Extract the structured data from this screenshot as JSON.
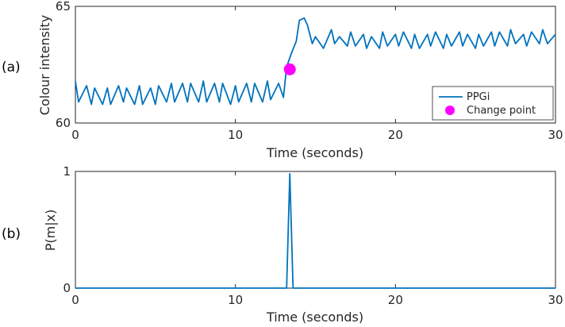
{
  "chart_data": [
    {
      "panel_label": "(a)",
      "type": "line",
      "xlabel": "Time (seconds)",
      "ylabel": "Colour intensity",
      "xlim": [
        0,
        30
      ],
      "ylim": [
        60,
        65
      ],
      "xticks": [
        0,
        10,
        20,
        30
      ],
      "yticks": [
        60,
        65
      ],
      "grid": false,
      "legend_position": "bottom-right",
      "series": [
        {
          "name": "PPGi",
          "color": "#0072BD",
          "x": [
            0,
            0.2,
            0.7,
            1.0,
            1.2,
            1.7,
            2.0,
            2.2,
            2.7,
            3.0,
            3.2,
            3.7,
            4.0,
            4.2,
            4.7,
            5.0,
            5.2,
            5.7,
            6.0,
            6.2,
            6.7,
            7.0,
            7.2,
            7.7,
            8.0,
            8.2,
            8.7,
            9.0,
            9.2,
            9.7,
            10.0,
            10.2,
            10.7,
            11.0,
            11.2,
            11.7,
            12.0,
            12.2,
            12.7,
            13.0,
            13.2,
            13.5,
            13.8,
            14.0,
            14.3,
            14.5,
            14.8,
            15.0,
            15.5,
            16.0,
            16.2,
            16.5,
            17.0,
            17.2,
            17.5,
            18.0,
            18.2,
            18.5,
            19.0,
            19.2,
            19.5,
            20.0,
            20.2,
            20.5,
            21.0,
            21.2,
            21.5,
            22.0,
            22.2,
            22.5,
            23.0,
            23.2,
            23.5,
            24.0,
            24.2,
            24.5,
            25.0,
            25.2,
            25.5,
            26.0,
            26.2,
            26.5,
            27.0,
            27.2,
            27.5,
            28.0,
            28.2,
            28.5,
            29.0,
            29.2,
            29.5,
            30.0
          ],
          "y": [
            61.8,
            60.9,
            61.6,
            60.8,
            61.5,
            60.8,
            61.5,
            60.8,
            61.6,
            60.9,
            61.5,
            60.8,
            61.6,
            60.8,
            61.5,
            60.8,
            61.6,
            60.9,
            61.7,
            60.9,
            61.7,
            60.9,
            61.7,
            60.9,
            61.8,
            60.9,
            61.7,
            60.9,
            61.7,
            60.8,
            61.6,
            60.9,
            61.7,
            60.9,
            61.7,
            60.9,
            61.8,
            61.0,
            61.7,
            61.1,
            62.4,
            63.0,
            63.5,
            64.4,
            64.5,
            64.2,
            63.4,
            63.7,
            63.2,
            64.0,
            63.4,
            63.7,
            63.3,
            63.9,
            63.3,
            63.8,
            63.2,
            63.7,
            63.2,
            63.9,
            63.3,
            63.8,
            63.3,
            63.9,
            63.2,
            63.8,
            63.2,
            63.8,
            63.3,
            63.9,
            63.2,
            63.8,
            63.3,
            63.9,
            63.3,
            63.8,
            63.2,
            63.8,
            63.3,
            63.9,
            63.3,
            63.9,
            63.3,
            64.0,
            63.4,
            63.8,
            63.3,
            63.9,
            63.4,
            64.0,
            63.4,
            63.8
          ]
        },
        {
          "name": "Change point",
          "type": "scatter",
          "color": "#FF00FF",
          "x": [
            13.4
          ],
          "y": [
            62.3
          ]
        }
      ]
    },
    {
      "panel_label": "(b)",
      "type": "line",
      "xlabel": "Time (seconds)",
      "ylabel": "P(m|x)",
      "xlim": [
        0,
        30
      ],
      "ylim": [
        0,
        1
      ],
      "xticks": [
        0,
        10,
        20,
        30
      ],
      "yticks": [
        0,
        1
      ],
      "grid": false,
      "series": [
        {
          "color": "#0072BD",
          "x": [
            0,
            13.2,
            13.4,
            13.6,
            30
          ],
          "y": [
            0,
            0,
            0.98,
            0,
            0
          ]
        }
      ]
    }
  ]
}
